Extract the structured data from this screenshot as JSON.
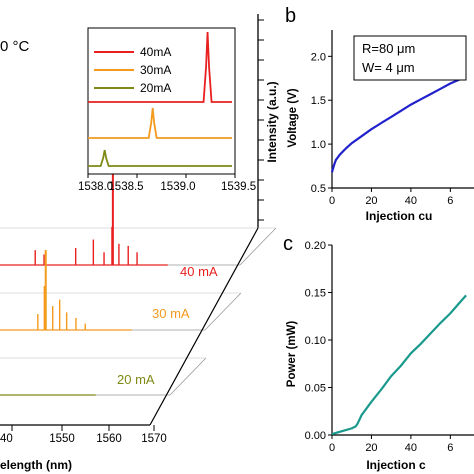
{
  "chart_data": [
    {
      "type": "line",
      "panel": "a",
      "title_fragment": "0 °C",
      "xlabel": "elength (nm)",
      "ylabel": "Intensity (a.u.)",
      "x_ticks": [
        "40",
        "1550",
        "1560",
        "1570"
      ],
      "series": [
        {
          "name": "40 mA",
          "color": "#e8201f",
          "peak_wavelength_nm": 1553.2,
          "peak_intensity": 1.0,
          "side_peaks_nm": [
            1536.5,
            1538.4,
            1545.2,
            1549.0,
            1551.3,
            1553.0,
            1554.5,
            1556.5,
            1558.4
          ]
        },
        {
          "name": "30 mA",
          "color": "#f39a1d",
          "peak_wavelength_nm": 1546.5,
          "peak_intensity": 0.36,
          "side_peaks_nm": [
            1544.8,
            1546.2,
            1548.0,
            1549.5,
            1551.0,
            1553.0,
            1555.0
          ]
        },
        {
          "name": "20 mA",
          "color": "#7f8a15",
          "peak_wavelength_nm": 1538.2,
          "peak_intensity": 0.24,
          "side_peaks_nm": [
            1537.0,
            1539.5,
            1541.0,
            1542.5
          ]
        }
      ]
    },
    {
      "type": "line",
      "panel": "a-inset",
      "x_ticks": [
        "1538.0",
        "1538.5",
        "1539.0",
        "1539.5"
      ],
      "xlim": [
        1538.0,
        1539.5
      ],
      "series": [
        {
          "name": "40mA",
          "color": "#e8201f",
          "peak_x": 1539.22
        },
        {
          "name": "30mA",
          "color": "#f39a1d",
          "peak_x": 1538.66
        },
        {
          "name": "20mA",
          "color": "#7f8a15",
          "peak_x": 1538.17
        }
      ]
    },
    {
      "type": "line",
      "panel": "b",
      "xlabel": "Injection cu",
      "ylabel": "Voltage (V)",
      "xlim": [
        0,
        72
      ],
      "ylim": [
        0.5,
        2.3
      ],
      "x_ticks": [
        "0",
        "20",
        "40",
        "6"
      ],
      "y_ticks": [
        "0.5",
        "1.0",
        "1.5",
        "2.0"
      ],
      "annotation": [
        "R=80 μm",
        "W= 4 μm"
      ],
      "series": [
        {
          "color": "#2222cc",
          "x": [
            0,
            1,
            2,
            4,
            7,
            10,
            15,
            20,
            25,
            30,
            35,
            40,
            45,
            50,
            55,
            60,
            65,
            68
          ],
          "y": [
            0.68,
            0.76,
            0.82,
            0.88,
            0.95,
            1.01,
            1.09,
            1.17,
            1.24,
            1.31,
            1.38,
            1.45,
            1.51,
            1.57,
            1.63,
            1.69,
            1.74,
            1.77
          ]
        }
      ]
    },
    {
      "type": "line",
      "panel": "c",
      "xlabel": "Injection c",
      "ylabel": "Power (mW)",
      "xlim": [
        0,
        72
      ],
      "ylim": [
        0,
        0.2
      ],
      "x_ticks": [
        "0",
        "20",
        "40",
        "6"
      ],
      "y_ticks": [
        "0.00",
        "0.05",
        "0.10",
        "0.15",
        "0.20"
      ],
      "series": [
        {
          "color": "#1a9a8c",
          "x": [
            0,
            5,
            10,
            12,
            13,
            15,
            20,
            25,
            30,
            35,
            40,
            45,
            50,
            55,
            60,
            65,
            68
          ],
          "y": [
            0.001,
            0.004,
            0.007,
            0.009,
            0.012,
            0.021,
            0.035,
            0.048,
            0.062,
            0.073,
            0.086,
            0.096,
            0.107,
            0.118,
            0.128,
            0.14,
            0.147
          ]
        }
      ]
    }
  ],
  "labels": {
    "panel_b": "b",
    "panel_c": "c",
    "inset_tick_left": "1538.0",
    "inset_tick_2": "1538.5",
    "inset_tick_3": "1539.0",
    "inset_tick_right": "1539.5"
  }
}
